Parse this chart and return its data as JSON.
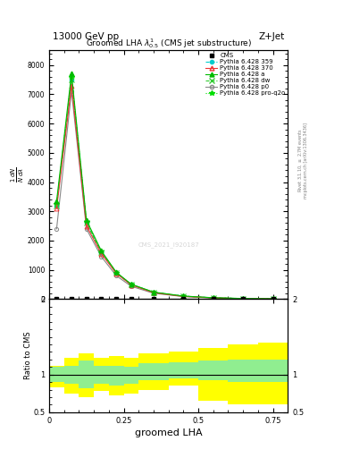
{
  "title_top": "13000 GeV pp",
  "title_right": "Z+Jet",
  "plot_title": "Groomed LHA $\\lambda^{1}_{0.5}$ (CMS jet substructure)",
  "ylabel_main": "$\\frac{1}{N}\\frac{dN}{d\\lambda}$",
  "ylabel_ratio": "Ratio to CMS",
  "xlabel": "groomed LHA",
  "right_label1": "Rivet 3.1.10, $\\geq$ 2.7M events",
  "right_label2": "mcplots.cern.ch [arXiv:1306.3436]",
  "watermark": "CMS_2021_I920187",
  "bin_edges": [
    0.0,
    0.05,
    0.1,
    0.15,
    0.2,
    0.25,
    0.3,
    0.4,
    0.5,
    0.6,
    0.7,
    0.8
  ],
  "x_centers": [
    0.025,
    0.075,
    0.125,
    0.175,
    0.225,
    0.275,
    0.35,
    0.45,
    0.55,
    0.65,
    0.75
  ],
  "tune_359_y": [
    3200,
    7500,
    2600,
    1600,
    900,
    500,
    230,
    100,
    45,
    20,
    10
  ],
  "tune_370_y": [
    3100,
    7300,
    2500,
    1550,
    880,
    485,
    220,
    92,
    43,
    18,
    9
  ],
  "tune_a_y": [
    3350,
    7700,
    2700,
    1650,
    920,
    510,
    240,
    105,
    48,
    22,
    11
  ],
  "tune_dw_y": [
    3200,
    7500,
    2600,
    1600,
    900,
    500,
    230,
    100,
    45,
    20,
    10
  ],
  "tune_p0_y": [
    2400,
    7100,
    2400,
    1450,
    800,
    440,
    200,
    88,
    40,
    17,
    8
  ],
  "tune_proq2o_y": [
    3250,
    7600,
    2650,
    1620,
    910,
    505,
    235,
    102,
    46,
    21,
    10
  ],
  "ylim_main": [
    0,
    8500
  ],
  "yticks_main": [
    0,
    1000,
    2000,
    3000,
    4000,
    5000,
    6000,
    7000,
    8000
  ],
  "ylim_ratio": [
    0.5,
    2.0
  ],
  "xlim": [
    0.0,
    0.8
  ],
  "xticks": [
    0.0,
    0.25,
    0.5,
    0.75
  ],
  "xticklabels": [
    "0",
    "0.25",
    "0.5",
    "0.75"
  ],
  "ratio_yellow_lo": [
    0.83,
    0.75,
    0.7,
    0.78,
    0.72,
    0.75,
    0.8,
    0.85,
    0.65,
    0.6,
    0.6
  ],
  "ratio_yellow_hi": [
    1.12,
    1.22,
    1.28,
    1.22,
    1.25,
    1.22,
    1.28,
    1.3,
    1.35,
    1.4,
    1.42
  ],
  "ratio_green_lo": [
    0.9,
    0.88,
    0.82,
    0.88,
    0.85,
    0.88,
    0.92,
    0.95,
    0.92,
    0.9,
    0.9
  ],
  "ratio_green_hi": [
    1.1,
    1.12,
    1.18,
    1.12,
    1.12,
    1.1,
    1.15,
    1.16,
    1.18,
    1.2,
    1.2
  ],
  "color_359": "#00CCCC",
  "color_370": "#EE3333",
  "color_a": "#00BB00",
  "color_dw": "#33CC33",
  "color_p0": "#888888",
  "color_proq2o": "#00DD00",
  "lw": 0.8,
  "ms": 3.0
}
